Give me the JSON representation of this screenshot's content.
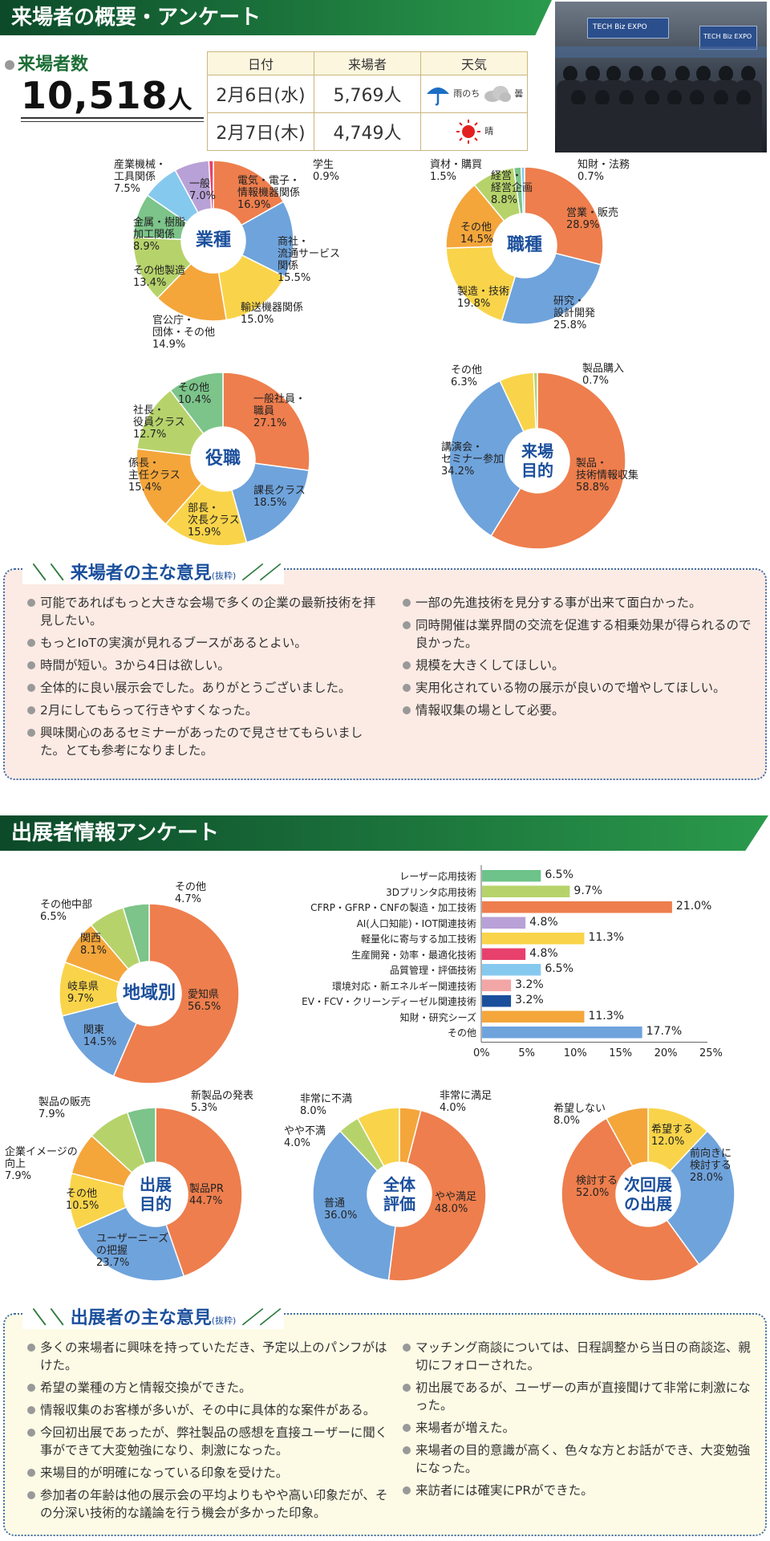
{
  "section1": {
    "title": "来場者の概要・アンケート"
  },
  "visitors": {
    "label": "来場者数",
    "total": "10,518",
    "unit": "人",
    "headers": [
      "日付",
      "来場者",
      "天気"
    ],
    "rows": [
      {
        "date": "2月6日(水)",
        "count": "5,769人",
        "weather": "雨のち曇",
        "w1": "雨",
        "w2": "のち",
        "w3": "曇"
      },
      {
        "date": "2月7日(木)",
        "count": "4,749人",
        "weather": "晴",
        "w1": "晴"
      }
    ]
  },
  "photo": {
    "sign1": "TECH Biz EXPO",
    "sign2": "TECH Biz EXPO"
  },
  "chart_data": [
    {
      "type": "pie",
      "id": "industry",
      "center": "業種",
      "slices": [
        {
          "label": "電気・電子・情報機器関係",
          "value": 16.9,
          "color": "#ee7e4d"
        },
        {
          "label": "商社・流通サービス関係",
          "value": 15.5,
          "color": "#6fa3dc"
        },
        {
          "label": "輸送機器関係",
          "value": 15.0,
          "color": "#f9d44a"
        },
        {
          "label": "官公庁・団体・その他",
          "value": 14.9,
          "color": "#f4a63b"
        },
        {
          "label": "その他製造",
          "value": 13.4,
          "color": "#b6d36b"
        },
        {
          "label": "金属・樹脂加工関係",
          "value": 8.9,
          "color": "#7cc48a"
        },
        {
          "label": "産業機械・工具関係",
          "value": 7.5,
          "color": "#86c9ef"
        },
        {
          "label": "一般",
          "value": 7.0,
          "color": "#b8a1d6"
        },
        {
          "label": "学生",
          "value": 0.9,
          "color": "#e8406c"
        }
      ]
    },
    {
      "type": "pie",
      "id": "job",
      "center": "職種",
      "slices": [
        {
          "label": "営業・販売",
          "value": 28.9,
          "color": "#ee7e4d"
        },
        {
          "label": "研究・設計開発",
          "value": 25.8,
          "color": "#6fa3dc"
        },
        {
          "label": "製造・技術",
          "value": 19.8,
          "color": "#f9d44a"
        },
        {
          "label": "その他",
          "value": 14.5,
          "color": "#f4a63b"
        },
        {
          "label": "経営・経営企画",
          "value": 8.8,
          "color": "#b6d36b"
        },
        {
          "label": "資材・購買",
          "value": 1.5,
          "color": "#7cc48a"
        },
        {
          "label": "知財・法務",
          "value": 0.7,
          "color": "#86c9ef"
        }
      ]
    },
    {
      "type": "pie",
      "id": "position",
      "center": "役職",
      "slices": [
        {
          "label": "一般社員・職員",
          "value": 27.1,
          "color": "#ee7e4d"
        },
        {
          "label": "課長クラス",
          "value": 18.5,
          "color": "#6fa3dc"
        },
        {
          "label": "部長・次長クラス",
          "value": 15.9,
          "color": "#f9d44a"
        },
        {
          "label": "係長・主任クラス",
          "value": 15.4,
          "color": "#f4a63b"
        },
        {
          "label": "社長・役員クラス",
          "value": 12.7,
          "color": "#b6d36b"
        },
        {
          "label": "その他",
          "value": 10.4,
          "color": "#7cc48a"
        }
      ]
    },
    {
      "type": "pie",
      "id": "purpose",
      "center": "来場目的",
      "slices": [
        {
          "label": "製品・技術情報収集",
          "value": 58.8,
          "color": "#ee7e4d"
        },
        {
          "label": "講演会・セミナー参加",
          "value": 34.2,
          "color": "#6fa3dc"
        },
        {
          "label": "その他",
          "value": 6.3,
          "color": "#f9d44a"
        },
        {
          "label": "製品購入",
          "value": 0.7,
          "color": "#b6d36b"
        }
      ]
    },
    {
      "type": "pie",
      "id": "region",
      "center": "地域別",
      "slices": [
        {
          "label": "愛知県",
          "value": 56.5,
          "color": "#ee7e4d"
        },
        {
          "label": "関東",
          "value": 14.5,
          "color": "#6fa3dc"
        },
        {
          "label": "岐阜県",
          "value": 9.7,
          "color": "#f9d44a"
        },
        {
          "label": "関西",
          "value": 8.1,
          "color": "#f4a63b"
        },
        {
          "label": "その他中部",
          "value": 6.5,
          "color": "#b6d36b"
        },
        {
          "label": "その他",
          "value": 4.7,
          "color": "#7cc48a"
        }
      ]
    },
    {
      "type": "bar",
      "id": "tech",
      "orientation": "horizontal",
      "categories": [
        "レーザー応用技術",
        "3Dプリンタ応用技術",
        "CFRP・GFRP・CNFの製造・加工技術",
        "AI(人口知能)・IOT関連技術",
        "軽量化に寄与する加工技術",
        "生産開発・効率・最適化技術",
        "品質管理・評価技術",
        "環境対応・新エネルギー関連技術",
        "EV・FCV・クリーンディーゼル関連技術",
        "知財・研究シーズ",
        "その他"
      ],
      "values": [
        6.5,
        9.7,
        21.0,
        4.8,
        11.3,
        4.8,
        6.5,
        3.2,
        3.2,
        11.3,
        17.7
      ],
      "value_labels": [
        "6.5%",
        "9.7%",
        "21.0%",
        "4.8%",
        "11.3%",
        "4.8%",
        "6.5%",
        "3.2%",
        "3.2%",
        "11.3%",
        "17.7%"
      ],
      "colors": [
        "#6dc389",
        "#b6d36b",
        "#ee7e4d",
        "#b8a1d6",
        "#f9d44a",
        "#e8406c",
        "#86c9ef",
        "#f3a6a6",
        "#1b4f9c",
        "#f4a63b",
        "#6fa3dc"
      ],
      "xticks": [
        "0%",
        "5%",
        "10%",
        "15%",
        "20%",
        "25%"
      ],
      "xlim": [
        0,
        25
      ]
    },
    {
      "type": "pie",
      "id": "exhibit_purpose",
      "center": "出展目的",
      "slices": [
        {
          "label": "製品PR",
          "value": 44.7,
          "color": "#ee7e4d"
        },
        {
          "label": "ユーザーニーズの把握",
          "value": 23.7,
          "color": "#6fa3dc"
        },
        {
          "label": "その他",
          "value": 10.5,
          "color": "#f9d44a"
        },
        {
          "label": "企業イメージの向上",
          "value": 7.9,
          "color": "#f4a63b"
        },
        {
          "label": "製品の販売",
          "value": 7.9,
          "color": "#b6d36b"
        },
        {
          "label": "新製品の発表",
          "value": 5.3,
          "color": "#7cc48a"
        }
      ]
    },
    {
      "type": "pie",
      "id": "evaluation",
      "center": "全体評価",
      "slices": [
        {
          "label": "非常に満足",
          "value": 4.0,
          "color": "#f4a63b"
        },
        {
          "label": "やや満足",
          "value": 48.0,
          "color": "#ee7e4d"
        },
        {
          "label": "普通",
          "value": 36.0,
          "color": "#6fa3dc"
        },
        {
          "label": "やや不満",
          "value": 4.0,
          "color": "#b6d36b"
        },
        {
          "label": "非常に不満",
          "value": 8.0,
          "color": "#f9d44a"
        }
      ]
    },
    {
      "type": "pie",
      "id": "next",
      "center": "次回展の出展",
      "slices": [
        {
          "label": "希望する",
          "value": 12.0,
          "color": "#f9d44a"
        },
        {
          "label": "前向きに検討する",
          "value": 28.0,
          "color": "#6fa3dc"
        },
        {
          "label": "検討する",
          "value": 52.0,
          "color": "#ee7e4d"
        },
        {
          "label": "希望しない",
          "value": 8.0,
          "color": "#f4a63b"
        }
      ]
    }
  ],
  "labels": {
    "industry": [
      "電気・電子・\n情報機器関係\n16.9%",
      "商社・\n流通サービス\n関係\n15.5%",
      "輸送機器関係\n15.0%",
      "官公庁・\n団体・その他\n14.9%",
      "その他製造\n13.4%",
      "金属・樹脂\n加工関係\n8.9%",
      "産業機械・\n工具関係\n7.5%",
      "一般\n7.0%",
      "学生\n0.9%"
    ],
    "job": [
      "営業・販売\n28.9%",
      "研究・\n設計開発\n25.8%",
      "製造・技術\n19.8%",
      "その他\n14.5%",
      "経営・\n経営企画\n8.8%",
      "資材・購買\n1.5%",
      "知財・法務\n0.7%"
    ],
    "position": [
      "一般社員・\n職員\n27.1%",
      "課長クラス\n18.5%",
      "部長・\n次長クラス\n15.9%",
      "係長・\n主任クラス\n15.4%",
      "社長・\n役員クラス\n12.7%",
      "その他\n10.4%"
    ],
    "purpose": [
      "製品・\n技術情報収集\n58.8%",
      "講演会・\nセミナー参加\n34.2%",
      "その他\n6.3%",
      "製品購入\n0.7%"
    ],
    "region": [
      "愛知県\n56.5%",
      "関東\n14.5%",
      "岐阜県\n9.7%",
      "関西\n8.1%",
      "その他中部\n6.5%",
      "その他\n4.7%"
    ],
    "exhibit_purpose": [
      "製品PR\n44.7%",
      "ユーザーニーズ\nの把握\n23.7%",
      "その他\n10.5%",
      "企業イメージの\n向上\n7.9%",
      "製品の販売\n7.9%",
      "新製品の発表\n5.3%"
    ],
    "evaluation": [
      "非常に満足\n4.0%",
      "やや満足\n48.0%",
      "普通\n36.0%",
      "やや不満\n4.0%",
      "非常に不満\n8.0%"
    ],
    "next": [
      "希望する\n12.0%",
      "前向きに\n検討する\n28.0%",
      "検討する\n52.0%",
      "希望しない\n8.0%"
    ]
  },
  "opinions1": {
    "title": "来場者の主な意見",
    "note": "(抜粋)",
    "left": [
      "可能であればもっと大きな会場で多くの企業の最新技術を拝見したい。",
      "もっとIoTの実演が見れるブースがあるとよい。",
      "時間が短い。3から4日は欲しい。",
      "全体的に良い展示会でした。ありがとうございました。",
      "2月にしてもらって行きやすくなった。",
      "興味関心のあるセミナーがあったので見させてもらいました。とても参考になりました。"
    ],
    "right": [
      "一部の先進技術を見分する事が出来て面白かった。",
      "同時開催は業界間の交流を促進する相乗効果が得られるので良かった。",
      "規模を大きくしてほしい。",
      "実用化されている物の展示が良いので増やしてほしい。",
      "情報収集の場として必要。"
    ]
  },
  "section2": {
    "title": "出展者情報アンケート"
  },
  "opinions2": {
    "title": "出展者の主な意見",
    "note": "(抜粋)",
    "left": [
      "多くの来場者に興味を持っていただき、予定以上のパンフがはけた。",
      "希望の業種の方と情報交換ができた。",
      "情報収集のお客様が多いが、その中に具体的な案件がある。",
      "今回初出展であったが、弊社製品の感想を直接ユーザーに聞く事ができて大変勉強になり、刺激になった。",
      "来場目的が明確になっている印象を受けた。",
      "参加者の年齢は他の展示会の平均よりもやや高い印象だが、その分深い技術的な議論を行う機会が多かった印象。"
    ],
    "right": [
      "マッチング商談については、日程調整から当日の商談迄、親切にフォローされた。",
      "初出展であるが、ユーザーの声が直接聞けて非常に刺激になった。",
      "来場者が増えた。",
      "来場者の目的意識が高く、色々な方とお話ができ、大変勉強になった。",
      "来訪者には確実にPRができた。"
    ]
  }
}
